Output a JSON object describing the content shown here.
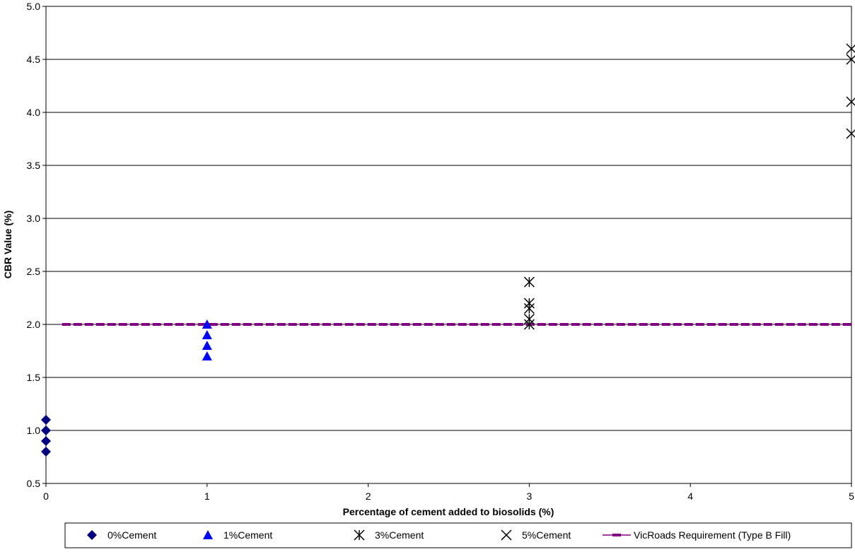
{
  "chart_data": {
    "type": "scatter",
    "title": "",
    "xlabel": "Percentage of cement added to biosolids (%)",
    "ylabel": "CBR Value (%)",
    "xlim": [
      0,
      5
    ],
    "ylim": [
      0.5,
      5.0
    ],
    "x_ticks": [
      "0",
      "1",
      "2",
      "3",
      "4",
      "5"
    ],
    "y_ticks": [
      "0.5",
      "1.0",
      "1.5",
      "2.0",
      "2.5",
      "3.0",
      "3.5",
      "4.0",
      "4.5",
      "5.0"
    ],
    "grid": "horizontal major gridlines",
    "legend_position": "bottom",
    "series": [
      {
        "name": "0%Cement",
        "marker": "diamond",
        "color": "#000080",
        "points": [
          [
            0,
            0.8
          ],
          [
            0,
            0.9
          ],
          [
            0,
            1.0
          ],
          [
            0,
            1.1
          ]
        ]
      },
      {
        "name": "1%Cement",
        "marker": "triangle",
        "color": "#0000FF",
        "points": [
          [
            1,
            1.7
          ],
          [
            1,
            1.8
          ],
          [
            1,
            1.9
          ],
          [
            1,
            2.0
          ]
        ]
      },
      {
        "name": "3%Cement",
        "marker": "asterisk",
        "color": "#000000",
        "points": [
          [
            3,
            2.0
          ],
          [
            3,
            2.05
          ],
          [
            3,
            2.15
          ],
          [
            3,
            2.2
          ],
          [
            3,
            2.4
          ]
        ]
      },
      {
        "name": "5%Cement",
        "marker": "x",
        "color": "#000000",
        "points": [
          [
            5,
            3.8
          ],
          [
            5,
            4.1
          ],
          [
            5,
            4.5
          ],
          [
            5,
            4.6
          ]
        ]
      }
    ],
    "reference_line": {
      "name": "VicRoads Requirement (Type B Fill)",
      "y": 2.0,
      "x_range": [
        0.1,
        5
      ],
      "color": "#800080",
      "style": "dashed"
    }
  }
}
